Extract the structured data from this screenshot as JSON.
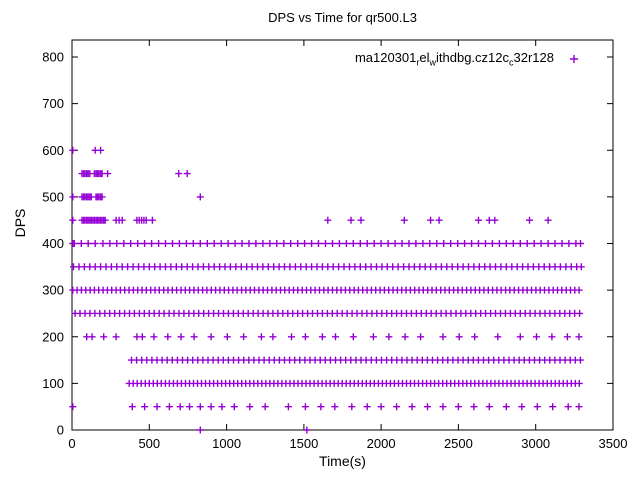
{
  "colors": {
    "accent": "#9400d3",
    "axis": "#000000",
    "background": "#ffffff"
  },
  "chart_data": {
    "type": "scatter",
    "title": "DPS vs Time for qr500.L3",
    "xlabel": "Time(s)",
    "ylabel": "DPS",
    "xlim": [
      0,
      3500
    ],
    "ylim": [
      0,
      800
    ],
    "xticks": [
      0,
      500,
      1000,
      1500,
      2000,
      2500,
      3000,
      3500
    ],
    "yticks": [
      0,
      100,
      200,
      300,
      400,
      500,
      600,
      700,
      800
    ],
    "grid": false,
    "legend_position": "top-right-inside",
    "marker": "plus",
    "series": [
      {
        "name": "ma120301relwithdbg.cz12cc32r128",
        "name_segments": [
          {
            "text": "ma120301"
          },
          {
            "text": "r",
            "sub": true
          },
          {
            "text": "el"
          },
          {
            "text": "w",
            "sub": true
          },
          {
            "text": "ithdbg.cz12c"
          },
          {
            "text": "c",
            "sub": true
          },
          {
            "text": "32r128"
          }
        ],
        "levels": [
          {
            "dps": 600,
            "times": [
              5,
              150,
              185
            ]
          },
          {
            "dps": 550,
            "times": [
              65,
              75,
              85,
              95,
              105,
              115,
              145,
              155,
              165,
              175,
              185,
              195,
              230,
              690,
              745
            ]
          },
          {
            "dps": 500,
            "times": [
              5,
              65,
              75,
              85,
              95,
              105,
              115,
              125,
              155,
              165,
              175,
              185,
              195,
              830
            ]
          },
          {
            "dps": 450,
            "times": [
              5,
              65,
              75,
              85,
              95,
              105,
              115,
              125,
              135,
              145,
              155,
              165,
              175,
              185,
              195,
              205,
              215,
              285,
              305,
              325,
              420,
              435,
              450,
              465,
              480,
              520,
              1655,
              1805,
              1870,
              2150,
              2320,
              2375,
              2630,
              2700,
              2735,
              2960,
              3080
            ]
          },
          {
            "dps": 400,
            "times": [
              5,
              15,
              60,
              105,
              150,
              200,
              245,
              290,
              335,
              380,
              425,
              470,
              515,
              560,
              605,
              650,
              695,
              740,
              785,
              830,
              875,
              920,
              965,
              1010,
              1055,
              1100,
              1145,
              1190,
              1235,
              1280,
              1325,
              1370,
              1415,
              1460,
              1505,
              1550,
              1595,
              1640,
              1685,
              1730,
              1775,
              1820,
              1865,
              1910,
              1955,
              2000,
              2045,
              2090,
              2135,
              2180,
              2225,
              2270,
              2315,
              2360,
              2405,
              2450,
              2495,
              2540,
              2585,
              2630,
              2675,
              2720,
              2765,
              2810,
              2855,
              2900,
              2945,
              2990,
              3035,
              3080,
              3125,
              3170,
              3215,
              3260,
              3290
            ]
          },
          {
            "dps": 350,
            "times": [
              10,
              45,
              80,
              115,
              150,
              185,
              220,
              255,
              290,
              325,
              360,
              395,
              430,
              465,
              500,
              535,
              570,
              605,
              640,
              675,
              710,
              745,
              780,
              815,
              850,
              885,
              920,
              955,
              990,
              1025,
              1060,
              1095,
              1130,
              1165,
              1200,
              1235,
              1270,
              1305,
              1340,
              1375,
              1410,
              1445,
              1480,
              1515,
              1550,
              1585,
              1620,
              1655,
              1690,
              1725,
              1760,
              1795,
              1830,
              1865,
              1900,
              1935,
              1970,
              2005,
              2040,
              2075,
              2110,
              2145,
              2180,
              2215,
              2250,
              2285,
              2320,
              2355,
              2390,
              2425,
              2460,
              2495,
              2530,
              2565,
              2600,
              2635,
              2670,
              2705,
              2740,
              2775,
              2810,
              2845,
              2880,
              2915,
              2950,
              2985,
              3020,
              3055,
              3090,
              3125,
              3160,
              3195,
              3230,
              3265,
              3295
            ]
          },
          {
            "dps": 300,
            "times": [
              5,
              33,
              61,
              89,
              117,
              145,
              173,
              201,
              229,
              257,
              285,
              313,
              341,
              369,
              397,
              425,
              453,
              481,
              509,
              537,
              565,
              593,
              621,
              649,
              677,
              705,
              733,
              761,
              789,
              817,
              845,
              873,
              901,
              929,
              957,
              985,
              1013,
              1041,
              1069,
              1097,
              1125,
              1153,
              1181,
              1209,
              1237,
              1265,
              1293,
              1321,
              1349,
              1377,
              1405,
              1433,
              1461,
              1489,
              1517,
              1545,
              1573,
              1601,
              1629,
              1657,
              1685,
              1713,
              1741,
              1769,
              1797,
              1825,
              1853,
              1881,
              1909,
              1937,
              1965,
              1993,
              2021,
              2049,
              2077,
              2105,
              2133,
              2161,
              2189,
              2217,
              2245,
              2273,
              2301,
              2329,
              2357,
              2385,
              2413,
              2441,
              2469,
              2497,
              2525,
              2553,
              2581,
              2609,
              2637,
              2665,
              2693,
              2721,
              2749,
              2777,
              2805,
              2833,
              2861,
              2889,
              2917,
              2945,
              2973,
              3001,
              3029,
              3057,
              3085,
              3113,
              3141,
              3169,
              3197,
              3225,
              3253,
              3281
            ]
          },
          {
            "dps": 250,
            "times": [
              20,
              52,
              84,
              116,
              148,
              180,
              212,
              244,
              276,
              308,
              340,
              372,
              404,
              436,
              468,
              500,
              532,
              564,
              596,
              628,
              660,
              692,
              724,
              756,
              788,
              820,
              852,
              884,
              916,
              948,
              980,
              1012,
              1044,
              1076,
              1108,
              1140,
              1172,
              1204,
              1236,
              1268,
              1300,
              1332,
              1364,
              1396,
              1428,
              1460,
              1492,
              1524,
              1556,
              1588,
              1620,
              1652,
              1684,
              1716,
              1748,
              1780,
              1812,
              1844,
              1876,
              1908,
              1940,
              1972,
              2004,
              2036,
              2068,
              2100,
              2132,
              2164,
              2196,
              2228,
              2260,
              2292,
              2324,
              2356,
              2388,
              2420,
              2452,
              2484,
              2516,
              2548,
              2580,
              2612,
              2644,
              2676,
              2708,
              2740,
              2772,
              2804,
              2836,
              2868,
              2900,
              2932,
              2964,
              2996,
              3028,
              3060,
              3092,
              3124,
              3156,
              3188,
              3220,
              3252,
              3284
            ]
          },
          {
            "dps": 200,
            "times": [
              95,
              130,
              205,
              285,
              420,
              455,
              530,
              620,
              705,
              790,
              900,
              1005,
              1110,
              1225,
              1300,
              1420,
              1510,
              1620,
              1705,
              1820,
              1950,
              2050,
              2155,
              2255,
              2400,
              2505,
              2605,
              2755,
              2900,
              3005,
              3105,
              3205,
              3280
            ]
          },
          {
            "dps": 150,
            "times": [
              385,
              418,
              451,
              484,
              517,
              550,
              583,
              616,
              649,
              682,
              715,
              748,
              781,
              814,
              847,
              880,
              913,
              946,
              979,
              1012,
              1045,
              1078,
              1111,
              1144,
              1177,
              1210,
              1243,
              1276,
              1309,
              1342,
              1375,
              1408,
              1441,
              1474,
              1507,
              1540,
              1573,
              1606,
              1639,
              1672,
              1705,
              1738,
              1771,
              1804,
              1837,
              1870,
              1903,
              1936,
              1969,
              2002,
              2035,
              2068,
              2101,
              2134,
              2167,
              2200,
              2233,
              2266,
              2299,
              2332,
              2365,
              2398,
              2431,
              2464,
              2497,
              2530,
              2563,
              2596,
              2629,
              2662,
              2695,
              2728,
              2761,
              2794,
              2827,
              2860,
              2893,
              2926,
              2959,
              2992,
              3025,
              3058,
              3091,
              3124,
              3157,
              3190,
              3223,
              3256,
              3289
            ]
          },
          {
            "dps": 100,
            "times": [
              370,
              396,
              422,
              448,
              474,
              500,
              526,
              552,
              578,
              604,
              630,
              656,
              682,
              708,
              734,
              760,
              786,
              812,
              838,
              864,
              890,
              916,
              942,
              968,
              994,
              1020,
              1046,
              1072,
              1098,
              1124,
              1150,
              1176,
              1202,
              1228,
              1254,
              1280,
              1306,
              1332,
              1358,
              1384,
              1410,
              1436,
              1462,
              1488,
              1514,
              1540,
              1566,
              1592,
              1618,
              1644,
              1670,
              1696,
              1722,
              1748,
              1774,
              1800,
              1826,
              1852,
              1878,
              1904,
              1930,
              1956,
              1982,
              2008,
              2034,
              2060,
              2086,
              2112,
              2138,
              2164,
              2190,
              2216,
              2242,
              2268,
              2294,
              2320,
              2346,
              2372,
              2398,
              2424,
              2450,
              2476,
              2502,
              2528,
              2554,
              2580,
              2606,
              2632,
              2658,
              2684,
              2710,
              2736,
              2762,
              2788,
              2814,
              2840,
              2866,
              2892,
              2918,
              2944,
              2970,
              2996,
              3022,
              3048,
              3074,
              3100,
              3126,
              3152,
              3178,
              3204,
              3230,
              3256,
              3282
            ]
          },
          {
            "dps": 50,
            "times": [
              5,
              390,
              470,
              550,
              630,
              700,
              760,
              830,
              900,
              970,
              1050,
              1150,
              1250,
              1400,
              1510,
              1610,
              1700,
              1810,
              1910,
              2000,
              2100,
              2200,
              2300,
              2400,
              2500,
              2600,
              2700,
              2810,
              2910,
              3010,
              3110,
              3210,
              3280
            ]
          },
          {
            "dps": 0,
            "times": [
              830,
              1520
            ]
          }
        ]
      }
    ]
  }
}
